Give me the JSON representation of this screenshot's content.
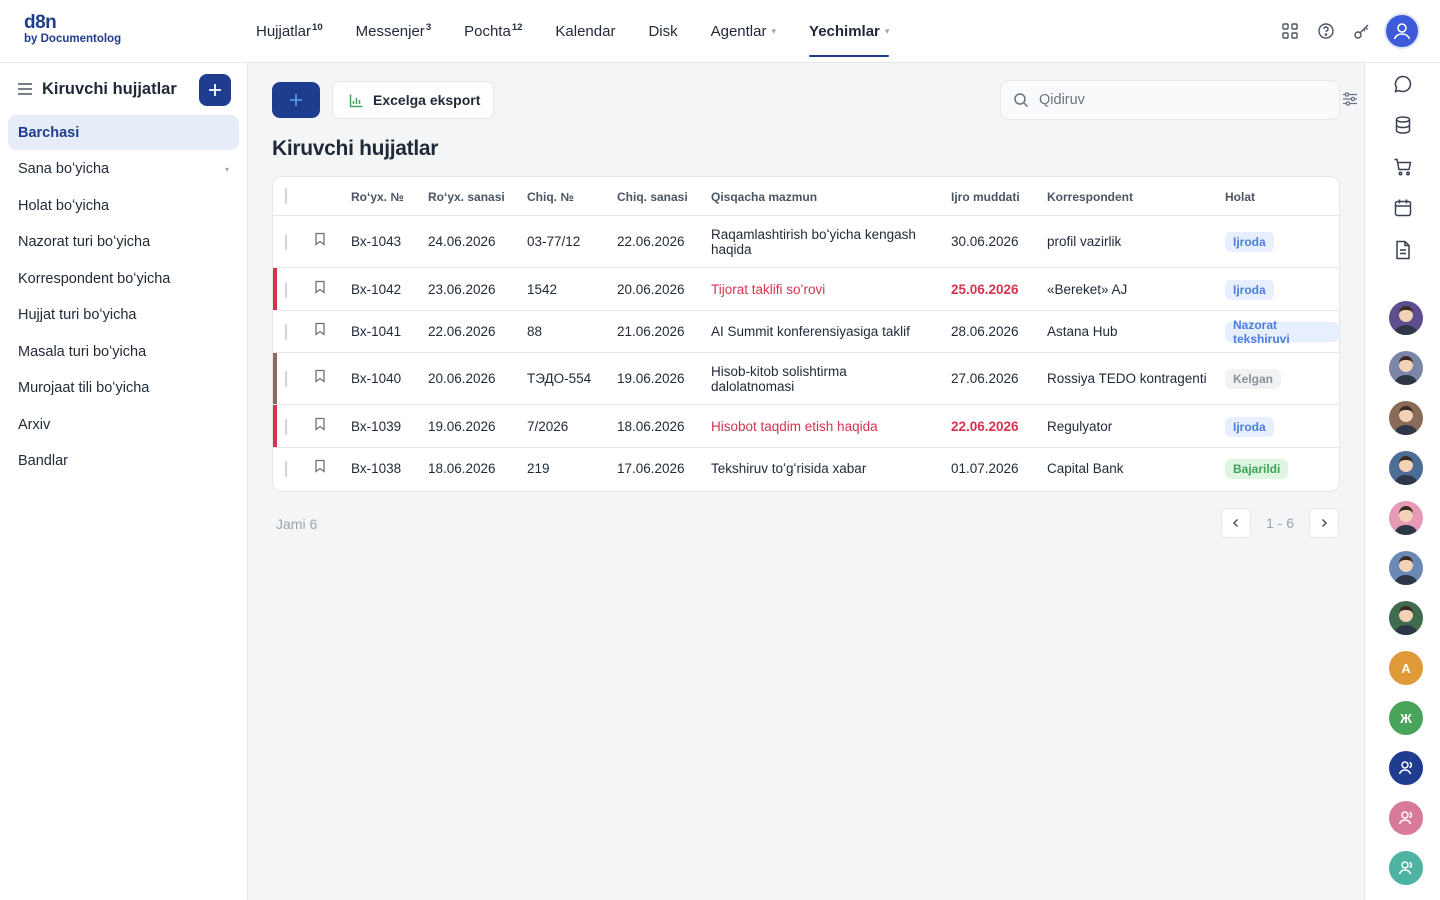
{
  "brand": {
    "line1": "d8n",
    "line2": "by Documentolog"
  },
  "nav": [
    {
      "label": "Hujjatlar",
      "badge": "10",
      "caret": "",
      "active": false
    },
    {
      "label": "Messenjer",
      "badge": "3",
      "caret": "",
      "active": false
    },
    {
      "label": "Pochta",
      "badge": "12",
      "caret": "",
      "active": false
    },
    {
      "label": "Kalendar",
      "badge": "",
      "caret": "",
      "active": false
    },
    {
      "label": "Disk",
      "badge": "",
      "caret": "",
      "active": false
    },
    {
      "label": "Agentlar",
      "badge": "",
      "caret": "▾",
      "active": false
    },
    {
      "label": "Yechimlar",
      "badge": "",
      "caret": "▾",
      "active": true
    }
  ],
  "sidebar": {
    "title": "Kiruvchi hujjatlar",
    "items": [
      {
        "label": "Barchasi",
        "active": true,
        "caret": ""
      },
      {
        "label": "Sana boʻyicha",
        "active": false,
        "caret": "▾"
      },
      {
        "label": "Holat boʻyicha",
        "active": false,
        "caret": ""
      },
      {
        "label": "Nazorat turi boʻyicha",
        "active": false,
        "caret": ""
      },
      {
        "label": "Korrespondent boʻyicha",
        "active": false,
        "caret": ""
      },
      {
        "label": "Hujjat turi boʻyicha",
        "active": false,
        "caret": ""
      },
      {
        "label": "Masala turi boʻyicha",
        "active": false,
        "caret": ""
      },
      {
        "label": "Murojaat tili boʻyicha",
        "active": false,
        "caret": ""
      },
      {
        "label": "Arxiv",
        "active": false,
        "caret": ""
      },
      {
        "label": "Bandlar",
        "active": false,
        "caret": ""
      }
    ]
  },
  "toolbar": {
    "add_symbol": "+",
    "export_label": "Excelga eksport",
    "search_placeholder": "Qidiruv"
  },
  "page_title": "Kiruvchi hujjatlar",
  "table": {
    "columns": [
      "Roʻyx. №",
      "Roʻyx. sanasi",
      "Chiq. №",
      "Chiq. sanasi",
      "Qisqacha mazmun",
      "Ijro muddati",
      "Korrespondent",
      "Holat"
    ],
    "rows": [
      {
        "reg_no": "Вх-1043",
        "reg_date": "24.06.2026",
        "out_no": "03-77/12",
        "out_date": "22.06.2026",
        "summary": "Raqamlashtirish boʻyicha kengash haqida",
        "deadline": "30.06.2026",
        "correspondent": "profil vazirlik",
        "status": "Ijroda",
        "status_kind": "blue",
        "accent": "",
        "overdue": false
      },
      {
        "reg_no": "Вх-1042",
        "reg_date": "23.06.2026",
        "out_no": "1542",
        "out_date": "20.06.2026",
        "summary": "Tijorat taklifi soʻrovi",
        "deadline": "25.06.2026",
        "correspondent": "«Bereket» AJ",
        "status": "Ijroda",
        "status_kind": "blue",
        "accent": "#d6334f",
        "overdue": true
      },
      {
        "reg_no": "Вх-1041",
        "reg_date": "22.06.2026",
        "out_no": "88",
        "out_date": "21.06.2026",
        "summary": "AI Summit konferensiyasiga taklif",
        "deadline": "28.06.2026",
        "correspondent": "Astana Hub",
        "status": "Nazorat tekshiruvi",
        "status_kind": "blue",
        "accent": "",
        "overdue": false
      },
      {
        "reg_no": "Вх-1040",
        "reg_date": "20.06.2026",
        "out_no": "ТЭДО-554",
        "out_date": "19.06.2026",
        "summary": "Hisob-kitob solishtirma dalolatnomasi",
        "deadline": "27.06.2026",
        "correspondent": "Rossiya TEDO kontragenti",
        "status": "Kelgan",
        "status_kind": "gray",
        "accent": "#8a6b5c",
        "overdue": false
      },
      {
        "reg_no": "Вх-1039",
        "reg_date": "19.06.2026",
        "out_no": "7/2026",
        "out_date": "18.06.2026",
        "summary": "Hisobot taqdim etish haqida",
        "deadline": "22.06.2026",
        "correspondent": "Regulyator",
        "status": "Ijroda",
        "status_kind": "blue",
        "accent": "#d6334f",
        "overdue": true
      },
      {
        "reg_no": "Вх-1038",
        "reg_date": "18.06.2026",
        "out_no": "219",
        "out_date": "17.06.2026",
        "summary": "Tekshiruv toʻgʻrisida xabar",
        "deadline": "01.07.2026",
        "correspondent": "Capital Bank",
        "status": "Bajarildi",
        "status_kind": "green",
        "accent": "",
        "overdue": false
      }
    ]
  },
  "footer": {
    "total": "Jami 6",
    "range": "1 - 6"
  },
  "rail": {
    "icons": [
      "chat-icon",
      "database-icon",
      "cart-icon",
      "calendar-icon",
      "document-icon"
    ],
    "contacts": [
      {
        "kind": "photo",
        "initial": "",
        "color": "#5d4e8f"
      },
      {
        "kind": "photo",
        "initial": "",
        "color": "#7b86a8"
      },
      {
        "kind": "photo",
        "initial": "",
        "color": "#8a6a58"
      },
      {
        "kind": "photo",
        "initial": "",
        "color": "#4c6d95"
      },
      {
        "kind": "photo",
        "initial": "",
        "color": "#e79ab6"
      },
      {
        "kind": "photo",
        "initial": "",
        "color": "#6a89b4"
      },
      {
        "kind": "photo",
        "initial": "",
        "color": "#3f6b4f"
      },
      {
        "kind": "initial",
        "initial": "A",
        "color": "#e09a3a"
      },
      {
        "kind": "initial",
        "initial": "Ж",
        "color": "#4aa35b"
      },
      {
        "kind": "icon",
        "initial": "",
        "color": "#1f3d8f"
      },
      {
        "kind": "icon",
        "initial": "",
        "color": "#d9799a"
      },
      {
        "kind": "icon",
        "initial": "",
        "color": "#4fb3a2"
      }
    ]
  }
}
